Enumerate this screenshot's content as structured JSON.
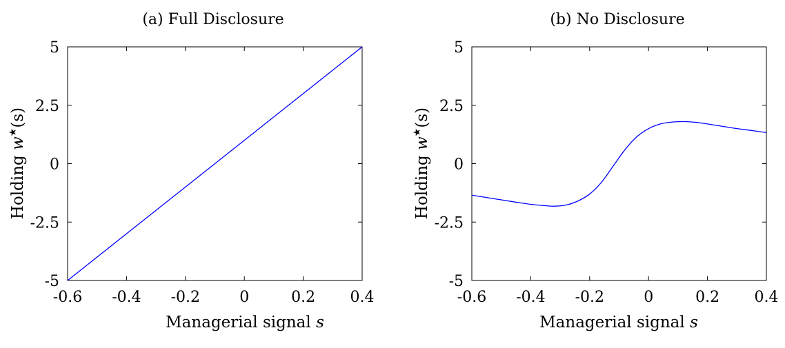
{
  "chart_data": [
    {
      "type": "line",
      "title": "(a) Full Disclosure",
      "xlabel": "Managerial signal",
      "xlabel_var": "s",
      "ylabel": "Holding",
      "ylabel_var": "w",
      "ylabel_sup": "★",
      "ylabel_arg": "(s)",
      "xlim": [
        -0.6,
        0.4
      ],
      "ylim": [
        -5,
        5
      ],
      "xticks": [
        -0.6,
        -0.4,
        -0.2,
        0,
        0.2,
        0.4
      ],
      "xtick_labels": [
        "-0.6",
        "-0.4",
        "-0.2",
        "0",
        "0.2",
        "0.4"
      ],
      "yticks": [
        -5,
        -2.5,
        0,
        2.5,
        5
      ],
      "ytick_labels": [
        "-5",
        "-2.5",
        "0",
        "2.5",
        "5"
      ],
      "grid": false,
      "series": [
        {
          "color": "#0000ff",
          "x": [
            -0.6,
            0.4
          ],
          "y": [
            -5.0,
            5.0
          ]
        }
      ]
    },
    {
      "type": "line",
      "title": "(b) No Disclosure",
      "xlabel": "Managerial signal",
      "xlabel_var": "s",
      "ylabel": "Holding",
      "ylabel_var": "w",
      "ylabel_sup": "★",
      "ylabel_arg": "(s)",
      "xlim": [
        -0.6,
        0.4
      ],
      "ylim": [
        -5,
        5
      ],
      "xticks": [
        -0.6,
        -0.4,
        -0.2,
        0,
        0.2,
        0.4
      ],
      "xtick_labels": [
        "-0.6",
        "-0.4",
        "-0.2",
        "0",
        "0.2",
        "0.4"
      ],
      "yticks": [
        -5,
        -2.5,
        0,
        2.5,
        5
      ],
      "ytick_labels": [
        "-5",
        "-2.5",
        "0",
        "2.5",
        "5"
      ],
      "grid": false,
      "series": [
        {
          "color": "#0000ff",
          "x": [
            -0.6,
            -0.55,
            -0.5,
            -0.45,
            -0.4,
            -0.35,
            -0.32,
            -0.28,
            -0.24,
            -0.2,
            -0.16,
            -0.12,
            -0.08,
            -0.04,
            0.0,
            0.04,
            0.08,
            0.12,
            0.16,
            0.2,
            0.25,
            0.3,
            0.35,
            0.4
          ],
          "y": [
            -1.35,
            -1.45,
            -1.55,
            -1.65,
            -1.74,
            -1.8,
            -1.82,
            -1.77,
            -1.6,
            -1.3,
            -0.8,
            -0.1,
            0.6,
            1.15,
            1.5,
            1.7,
            1.78,
            1.8,
            1.77,
            1.7,
            1.6,
            1.5,
            1.42,
            1.33
          ]
        }
      ]
    }
  ]
}
